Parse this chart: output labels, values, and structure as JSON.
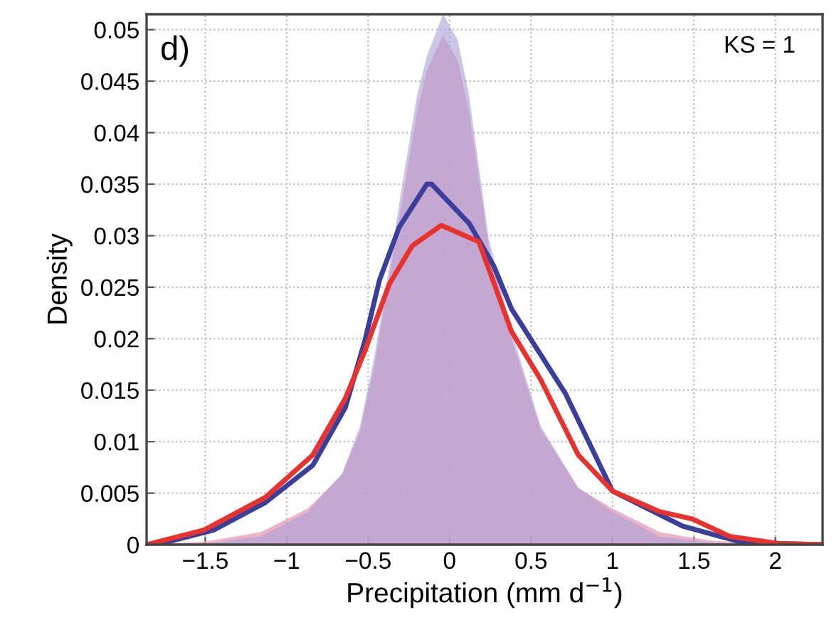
{
  "chart_data": {
    "type": "area",
    "xlabel": "Precipitation (mm d$^{−1}$)",
    "ylabel": "Density",
    "annotations": [
      "d)",
      "KS = 1"
    ],
    "xlim": [
      -1.86,
      2.29
    ],
    "ylim": [
      0,
      0.0515
    ],
    "xticks": [
      {
        "value": -1.5,
        "label": "−1.5"
      },
      {
        "value": -1,
        "label": "−1"
      },
      {
        "value": -0.5,
        "label": "−0.5"
      },
      0,
      0.5,
      1,
      1.5,
      2
    ],
    "yticks": [
      0,
      0.005,
      0.01,
      0.015,
      0.02,
      0.025,
      0.03,
      0.035,
      0.04,
      0.045,
      0.05
    ],
    "grid": true,
    "line_style": "solid",
    "series": [
      {
        "color": "#a8a0d8",
        "x": [
          -1.86,
          -1.5,
          -1.16,
          -0.87,
          -0.66,
          -0.55,
          -0.46,
          -0.37,
          -0.29,
          -0.2,
          -0.14,
          -0.04,
          0.05,
          0.12,
          0.24,
          0.38,
          0.56,
          0.79,
          1.0,
          1.29,
          1.6,
          2.0,
          2.29
        ],
        "values": [
          0,
          0.0001,
          0.0008,
          0.0032,
          0.0069,
          0.0115,
          0.0184,
          0.027,
          0.035,
          0.0436,
          0.0474,
          0.0515,
          0.049,
          0.0436,
          0.0298,
          0.0207,
          0.0115,
          0.0055,
          0.0032,
          0.0008,
          0.0002,
          0,
          0
        ]
      },
      {
        "color": "#e8a0b8",
        "x": [
          -1.86,
          -1.5,
          -1.16,
          -0.87,
          -0.66,
          -0.55,
          -0.46,
          -0.37,
          -0.29,
          -0.2,
          -0.14,
          -0.04,
          0.05,
          0.12,
          0.24,
          0.38,
          0.56,
          0.79,
          1.0,
          1.29,
          1.6,
          2.0,
          2.29
        ],
        "values": [
          0,
          0.0003,
          0.0012,
          0.0035,
          0.0068,
          0.011,
          0.0175,
          0.026,
          0.0335,
          0.042,
          0.046,
          0.0495,
          0.047,
          0.042,
          0.029,
          0.02,
          0.0112,
          0.0055,
          0.0035,
          0.0012,
          0.0004,
          0,
          0
        ]
      },
      {
        "type": "line",
        "color": "#3b3f9c",
        "x": [
          -1.8,
          -1.45,
          -1.13,
          -0.84,
          -0.64,
          -0.52,
          -0.43,
          -0.31,
          -0.14,
          -0.11,
          0.12,
          0.27,
          0.38,
          0.71,
          1.0,
          1.43,
          1.8,
          2.29
        ],
        "values": [
          0,
          0.0014,
          0.0041,
          0.0077,
          0.0133,
          0.0198,
          0.0257,
          0.0308,
          0.035,
          0.035,
          0.0312,
          0.0271,
          0.0229,
          0.0147,
          0.0052,
          0.0018,
          0.0002,
          0
        ]
      },
      {
        "type": "line",
        "color": "#e8322e",
        "x": [
          -1.86,
          -1.51,
          -1.13,
          -0.84,
          -0.64,
          -0.52,
          -0.37,
          -0.23,
          -0.05,
          0.18,
          0.38,
          0.56,
          0.79,
          1.0,
          1.29,
          1.49,
          1.72,
          2.02,
          2.29
        ],
        "values": [
          0,
          0.0014,
          0.0046,
          0.0087,
          0.0142,
          0.0188,
          0.0253,
          0.029,
          0.031,
          0.0294,
          0.0207,
          0.016,
          0.0087,
          0.0052,
          0.0032,
          0.0025,
          0.0008,
          0.0001,
          0
        ]
      }
    ]
  }
}
